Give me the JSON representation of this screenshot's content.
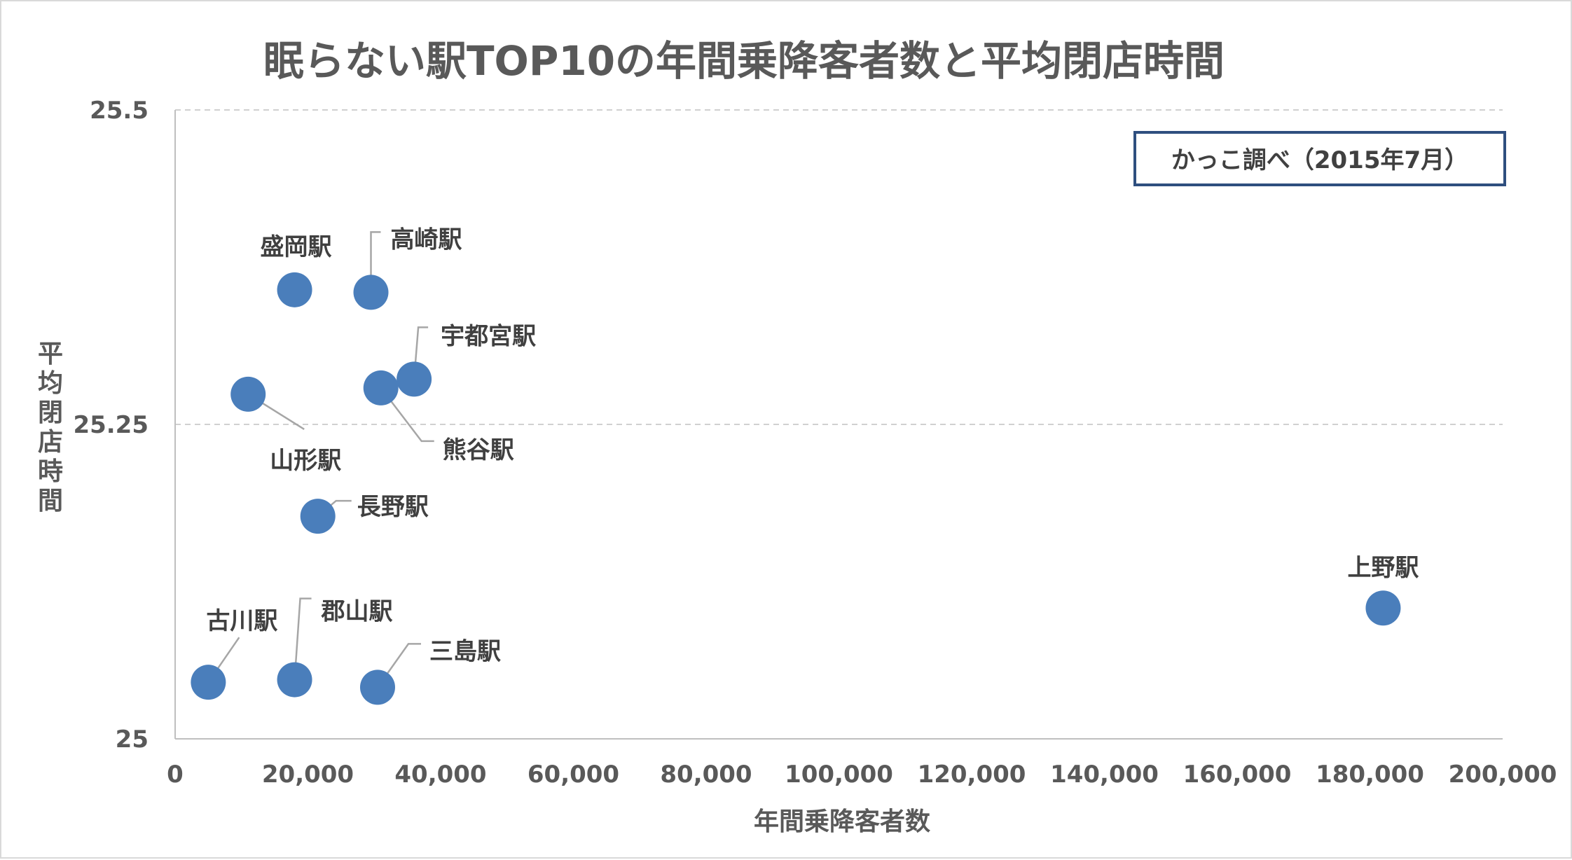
{
  "chart_data": {
    "type": "scatter",
    "title": "眠らない駅TOP10の年間乗降客者数と平均閉店時間",
    "xlabel": "年間乗降客者数",
    "ylabel": "平均閉店時間",
    "xlim": [
      0,
      200000
    ],
    "ylim": [
      25,
      25.5
    ],
    "x_ticks": [
      "0",
      "20,000",
      "40,000",
      "60,000",
      "80,000",
      "100,000",
      "120,000",
      "140,000",
      "160,000",
      "180,000",
      "200,000"
    ],
    "y_ticks": [
      "25",
      "25.25",
      "25.5"
    ],
    "grid": "horizontal",
    "annotation": "かっこ調べ（2015年7月）",
    "colors": {
      "marker": "#4a7ebb",
      "grid": "#d0d0d0",
      "leader": "#a6a6a6",
      "note_border": "#2f4f7f"
    },
    "points": [
      {
        "name": "盛岡駅",
        "x": 18000,
        "y": 25.357
      },
      {
        "name": "高崎駅",
        "x": 29500,
        "y": 25.355
      },
      {
        "name": "宇都宮駅",
        "x": 36000,
        "y": 25.286
      },
      {
        "name": "熊谷駅",
        "x": 31000,
        "y": 25.279
      },
      {
        "name": "山形駅",
        "x": 11000,
        "y": 25.274
      },
      {
        "name": "長野駅",
        "x": 21500,
        "y": 25.177
      },
      {
        "name": "上野駅",
        "x": 182000,
        "y": 25.104
      },
      {
        "name": "郡山駅",
        "x": 18000,
        "y": 25.047
      },
      {
        "name": "古川駅",
        "x": 5000,
        "y": 25.045
      },
      {
        "name": "三島駅",
        "x": 30500,
        "y": 25.041
      }
    ]
  }
}
